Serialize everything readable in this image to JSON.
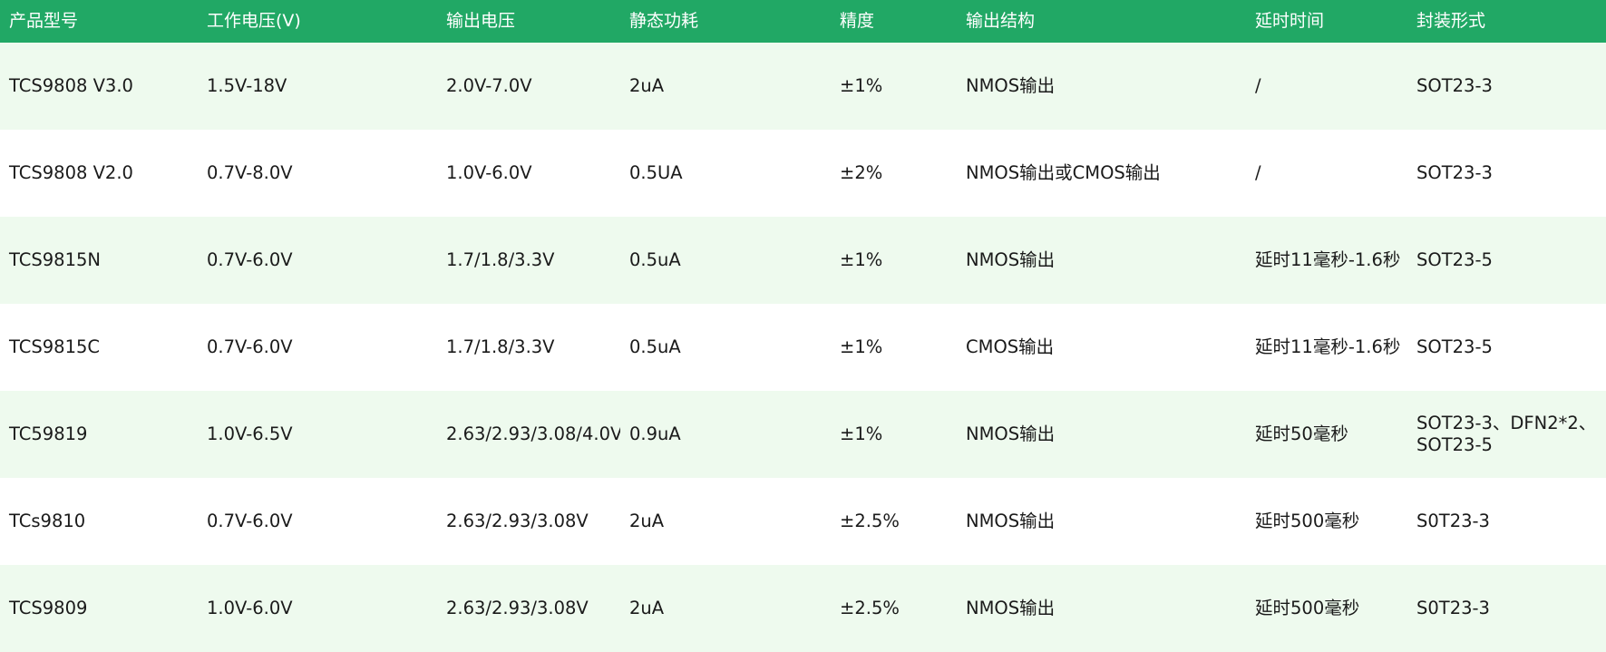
{
  "table": {
    "headers": [
      "产品型号",
      "工作电压(V)",
      "输出电压",
      "静态功耗",
      "精度",
      "输出结构",
      "延时时间",
      "封装形式"
    ],
    "rows": [
      [
        "TCS9808 V3.0",
        "1.5V-18V",
        "2.0V-7.0V",
        "2uA",
        "±1%",
        "NMOS输出",
        "/",
        "SOT23-3"
      ],
      [
        "TCS9808 V2.0",
        "0.7V-8.0V",
        "1.0V-6.0V",
        "0.5UA",
        "±2%",
        "NMOS输出或CMOS输出",
        "/",
        "SOT23-3"
      ],
      [
        "TCS9815N",
        "0.7V-6.0V",
        "1.7/1.8/3.3V",
        "0.5uA",
        "±1%",
        "NMOS输出",
        "延时11毫秒-1.6秒",
        "SOT23-5"
      ],
      [
        "TCS9815C",
        "0.7V-6.0V",
        "1.7/1.8/3.3V",
        "0.5uA",
        "±1%",
        "CMOS输出",
        "延时11毫秒-1.6秒",
        "SOT23-5"
      ],
      [
        "TC59819",
        "1.0V-6.5V",
        "2.63/2.93/3.08/4.0V",
        "0.9uA",
        "±1%",
        "NMOS输出",
        "延时50毫秒",
        "SOT23-3、DFN2*2、SOT23-5"
      ],
      [
        "TCs9810",
        "0.7V-6.0V",
        "2.63/2.93/3.08V",
        "2uA",
        "±2.5%",
        "NMOS输出",
        "延时500毫秒",
        "S0T23-3"
      ],
      [
        "TCS9809",
        "1.0V-6.0V",
        "2.63/2.93/3.08V",
        "2uA",
        "±2.5%",
        "NMOS输出",
        "延时500毫秒",
        "S0T23-3"
      ]
    ]
  },
  "colors": {
    "header_bg": "#21a865",
    "header_text": "#ffffff",
    "row_alt_bg": "#eefaee",
    "row_plain_bg": "#ffffff",
    "body_text": "#1a1a1a"
  }
}
